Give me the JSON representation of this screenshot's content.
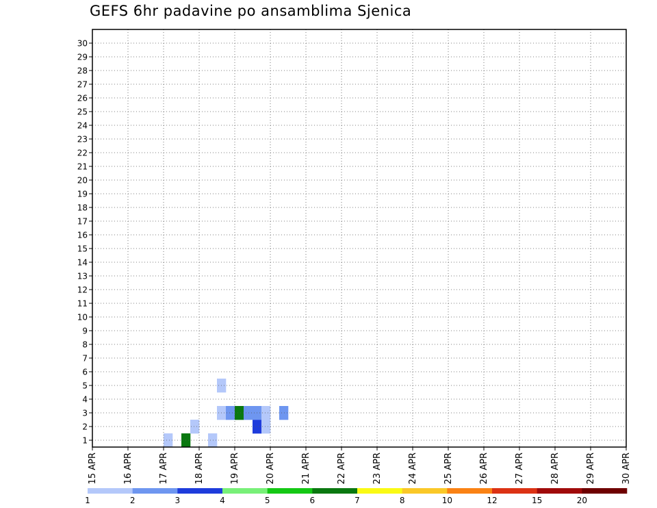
{
  "chart_data": {
    "type": "heatmap",
    "title": "GEFS 6hr padavine po ansamblima Sjenica",
    "x_ticks": [
      "15 APR",
      "16 APR",
      "17 APR",
      "18 APR",
      "19 APR",
      "20 APR",
      "21 APR",
      "22 APR",
      "23 APR",
      "24 APR",
      "25 APR",
      "26 APR",
      "27 APR",
      "28 APR",
      "29 APR",
      "30 APR"
    ],
    "y_ticks": [
      "1",
      "2",
      "3",
      "4",
      "5",
      "6",
      "7",
      "8",
      "9",
      "10",
      "11",
      "12",
      "13",
      "14",
      "15",
      "16",
      "17",
      "18",
      "19",
      "20",
      "21",
      "22",
      "23",
      "24",
      "25",
      "26",
      "27",
      "28",
      "29",
      "30"
    ],
    "x_range": [
      "15 APR",
      "30 APR"
    ],
    "steps_per_day": 4,
    "y_range": [
      0,
      30
    ],
    "grid": true,
    "colorbar": {
      "labels": [
        "1",
        "2",
        "3",
        "4",
        "5",
        "6",
        "7",
        "8",
        "10",
        "12",
        "15",
        "20"
      ],
      "colors": [
        "#b4c8fa",
        "#6e96f0",
        "#1e3cdc",
        "#78f078",
        "#14c814",
        "#0a7810",
        "#fafa14",
        "#fac828",
        "#fa8214",
        "#dc3214",
        "#a00a0a",
        "#6e0000"
      ]
    },
    "members": [
      [
        1,
        0,
        6,
        0,
        0,
        1,
        0,
        0,
        0,
        0,
        0,
        0,
        0,
        0,
        0,
        0,
        0,
        0,
        0,
        0,
        0,
        0,
        0,
        0,
        0,
        0,
        0,
        0,
        0,
        0,
        0
      ],
      [
        0,
        0,
        0,
        1,
        0,
        0,
        0,
        0,
        0,
        0,
        3,
        1,
        0,
        0,
        0,
        0,
        0,
        0,
        0,
        0,
        0,
        0,
        0,
        0,
        0,
        0,
        0,
        0,
        0,
        0,
        0
      ],
      [
        0,
        0,
        0,
        0,
        0,
        0,
        1,
        2,
        6,
        2,
        2,
        1,
        0,
        2,
        0,
        0,
        0,
        0,
        0,
        0,
        0,
        0,
        0,
        0,
        0,
        0,
        0,
        0,
        0,
        0,
        0
      ],
      [
        0,
        0,
        0,
        0,
        0,
        0,
        0,
        0,
        0,
        0,
        0,
        0,
        0,
        0,
        0,
        0,
        0,
        0,
        0,
        0,
        0,
        0,
        0,
        0,
        0,
        0,
        0,
        0,
        0,
        0,
        0
      ],
      [
        0,
        0,
        0,
        0,
        0,
        0,
        1,
        0,
        0,
        0,
        0,
        0,
        0,
        0,
        0,
        0,
        0,
        0,
        0,
        0,
        0,
        0,
        0,
        0,
        0,
        0,
        0,
        0,
        0,
        0,
        0
      ],
      [
        0,
        0,
        0,
        0,
        0,
        0,
        0,
        0,
        0,
        0,
        0,
        0,
        0,
        0,
        0,
        0,
        0,
        0,
        0,
        0,
        0,
        0,
        0,
        0,
        0,
        0,
        0,
        0,
        0,
        0,
        0
      ],
      [
        0,
        0,
        0,
        0,
        0,
        0,
        0,
        0,
        0,
        0,
        0,
        0,
        0,
        0,
        0,
        0,
        0,
        0,
        0,
        0,
        0,
        0,
        0,
        0,
        0,
        0,
        0,
        0,
        0,
        0,
        0
      ],
      [
        0,
        0,
        0,
        0,
        0,
        0,
        0,
        0,
        0,
        0,
        0,
        0,
        0,
        0,
        0,
        0,
        0,
        0,
        0,
        0,
        0,
        0,
        0,
        0,
        0,
        0,
        0,
        0,
        0,
        0,
        0
      ],
      [
        0,
        0,
        0,
        0,
        0,
        0,
        0,
        0,
        0,
        0,
        0,
        0,
        0,
        0,
        0,
        0,
        0,
        0,
        0,
        0,
        0,
        0,
        0,
        0,
        0,
        0,
        0,
        0,
        0,
        0,
        0
      ],
      [
        0,
        0,
        0,
        0,
        0,
        0,
        0,
        0,
        0,
        0,
        0,
        0,
        0,
        0,
        0,
        0,
        0,
        0,
        0,
        0,
        0,
        0,
        0,
        0,
        0,
        0,
        0,
        0,
        0,
        0,
        0
      ],
      [
        0,
        0,
        0,
        0,
        0,
        0,
        0,
        0,
        0,
        0,
        0,
        0,
        0,
        0,
        0,
        0,
        0,
        0,
        0,
        0,
        0,
        0,
        0,
        0,
        0,
        0,
        0,
        0,
        0,
        0,
        0
      ],
      [
        0,
        0,
        0,
        0,
        0,
        0,
        0,
        0,
        0,
        0,
        0,
        0,
        0,
        0,
        0,
        0,
        0,
        0,
        0,
        0,
        0,
        0,
        0,
        0,
        0,
        0,
        0,
        0,
        0,
        0,
        0
      ],
      [
        0,
        0,
        0,
        0,
        0,
        0,
        0,
        0,
        0,
        0,
        0,
        0,
        0,
        0,
        0,
        0,
        0,
        0,
        0,
        0,
        0,
        0,
        0,
        0,
        0,
        0,
        0,
        0,
        0,
        0,
        0
      ],
      [
        0,
        0,
        0,
        0,
        0,
        0,
        0,
        0,
        0,
        0,
        0,
        0,
        0,
        0,
        0,
        0,
        0,
        0,
        0,
        0,
        0,
        0,
        0,
        0,
        0,
        0,
        0,
        0,
        0,
        0,
        0
      ],
      [
        0,
        0,
        0,
        0,
        0,
        0,
        0,
        0,
        0,
        0,
        0,
        0,
        0,
        0,
        0,
        0,
        0,
        0,
        0,
        0,
        0,
        0,
        0,
        0,
        0,
        0,
        0,
        0,
        0,
        0,
        0
      ],
      [
        0,
        0,
        0,
        0,
        0,
        0,
        0,
        0,
        0,
        0,
        0,
        0,
        0,
        0,
        0,
        0,
        0,
        0,
        0,
        0,
        0,
        0,
        0,
        0,
        0,
        0,
        0,
        0,
        0,
        0,
        0
      ],
      [
        0,
        0,
        0,
        0,
        0,
        0,
        0,
        0,
        0,
        0,
        0,
        0,
        0,
        0,
        0,
        0,
        0,
        0,
        0,
        0,
        0,
        0,
        0,
        0,
        0,
        0,
        0,
        0,
        0,
        0,
        0
      ],
      [
        0,
        0,
        0,
        0,
        0,
        0,
        0,
        0,
        0,
        0,
        0,
        0,
        0,
        0,
        0,
        0,
        0,
        0,
        0,
        0,
        0,
        0,
        0,
        0,
        0,
        0,
        0,
        0,
        0,
        0,
        0
      ],
      [
        0,
        0,
        0,
        0,
        0,
        0,
        0,
        0,
        0,
        0,
        0,
        0,
        0,
        0,
        0,
        0,
        0,
        0,
        0,
        0,
        0,
        0,
        0,
        0,
        0,
        0,
        0,
        0,
        0,
        0,
        0
      ],
      [
        0,
        0,
        0,
        0,
        0,
        0,
        0,
        0,
        0,
        0,
        0,
        0,
        0,
        0,
        0,
        0,
        0,
        0,
        0,
        0,
        0,
        0,
        0,
        0,
        0,
        0,
        0,
        0,
        0,
        0,
        0
      ],
      [
        0,
        0,
        0,
        0,
        0,
        0,
        0,
        0,
        0,
        0,
        0,
        0,
        0,
        0,
        0,
        0,
        0,
        0,
        0,
        0,
        0,
        0,
        0,
        0,
        0,
        0,
        0,
        0,
        0,
        0,
        0
      ],
      [
        0,
        0,
        0,
        0,
        0,
        0,
        0,
        0,
        0,
        0,
        0,
        0,
        0,
        0,
        0,
        0,
        0,
        0,
        0,
        0,
        0,
        0,
        0,
        0,
        0,
        0,
        0,
        0,
        0,
        0,
        0
      ],
      [
        0,
        0,
        0,
        0,
        0,
        0,
        0,
        0,
        0,
        0,
        0,
        0,
        0,
        0,
        0,
        0,
        0,
        0,
        0,
        0,
        0,
        0,
        0,
        0,
        0,
        0,
        0,
        0,
        0,
        0,
        0
      ],
      [
        0,
        0,
        0,
        0,
        0,
        0,
        0,
        0,
        0,
        0,
        0,
        0,
        0,
        0,
        0,
        0,
        0,
        0,
        0,
        0,
        0,
        0,
        0,
        0,
        0,
        0,
        0,
        0,
        0,
        0,
        0
      ],
      [
        0,
        0,
        0,
        0,
        0,
        0,
        0,
        0,
        0,
        0,
        0,
        0,
        0,
        0,
        0,
        0,
        0,
        0,
        0,
        0,
        0,
        0,
        0,
        0,
        0,
        0,
        0,
        0,
        0,
        0,
        0
      ],
      [
        0,
        0,
        0,
        0,
        0,
        0,
        0,
        0,
        0,
        0,
        0,
        0,
        0,
        0,
        0,
        0,
        0,
        0,
        0,
        0,
        0,
        0,
        0,
        0,
        0,
        0,
        0,
        0,
        0,
        0,
        0
      ],
      [
        0,
        0,
        0,
        0,
        0,
        0,
        0,
        0,
        0,
        0,
        0,
        0,
        0,
        0,
        0,
        0,
        0,
        0,
        0,
        0,
        0,
        0,
        0,
        0,
        0,
        0,
        0,
        0,
        0,
        0,
        0
      ],
      [
        0,
        0,
        0,
        0,
        0,
        0,
        0,
        0,
        0,
        0,
        0,
        0,
        0,
        0,
        0,
        0,
        0,
        0,
        0,
        0,
        0,
        0,
        0,
        0,
        0,
        0,
        0,
        0,
        0,
        0,
        0
      ],
      [
        0,
        0,
        0,
        0,
        0,
        0,
        0,
        0,
        0,
        0,
        0,
        0,
        0,
        0,
        0,
        0,
        0,
        0,
        0,
        0,
        0,
        0,
        0,
        0,
        0,
        0,
        0,
        0,
        0,
        0,
        0
      ],
      [
        0,
        0,
        0,
        0,
        0,
        0,
        0,
        0,
        0,
        0,
        0,
        0,
        0,
        0,
        0,
        0,
        0,
        0,
        0,
        0,
        0,
        0,
        0,
        0,
        0,
        0,
        0,
        0,
        0,
        0,
        0
      ]
    ]
  }
}
